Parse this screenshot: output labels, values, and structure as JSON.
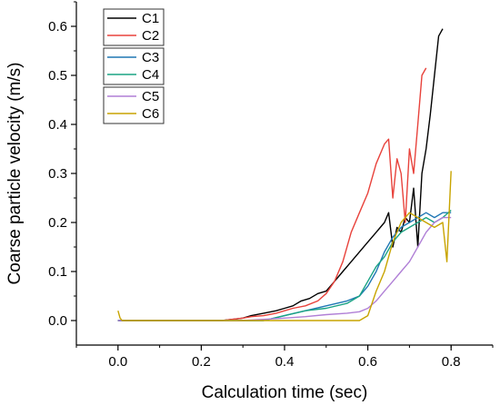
{
  "chart_data": {
    "type": "line",
    "title": "",
    "xlabel": "Calculation time (sec)",
    "ylabel": "Coarse particle velocity (m/s)",
    "xlim": [
      -0.1,
      0.9
    ],
    "ylim": [
      -0.05,
      0.65
    ],
    "xticks": [
      "0.0",
      "0.2",
      "0.4",
      "0.6",
      "0.8"
    ],
    "yticks": [
      "0.0",
      "0.1",
      "0.2",
      "0.3",
      "0.4",
      "0.5",
      "0.6"
    ],
    "grid": false,
    "legend_position": "top-left",
    "legend_groups": [
      [
        0,
        1
      ],
      [
        2,
        3
      ],
      [
        4,
        5
      ]
    ],
    "series": [
      {
        "name": "C1",
        "color": "#000000",
        "x": [
          0.0,
          0.05,
          0.1,
          0.2,
          0.25,
          0.28,
          0.3,
          0.32,
          0.35,
          0.38,
          0.4,
          0.42,
          0.44,
          0.46,
          0.48,
          0.5,
          0.52,
          0.54,
          0.56,
          0.58,
          0.6,
          0.62,
          0.64,
          0.65,
          0.66,
          0.67,
          0.68,
          0.69,
          0.7,
          0.71,
          0.72,
          0.73,
          0.74,
          0.75,
          0.76,
          0.77,
          0.78
        ],
        "y": [
          0.0,
          0.0,
          0.0,
          0.0,
          0.0,
          0.003,
          0.005,
          0.01,
          0.015,
          0.02,
          0.025,
          0.03,
          0.04,
          0.045,
          0.055,
          0.06,
          0.08,
          0.1,
          0.12,
          0.14,
          0.16,
          0.18,
          0.2,
          0.22,
          0.15,
          0.19,
          0.18,
          0.21,
          0.2,
          0.27,
          0.15,
          0.3,
          0.35,
          0.42,
          0.5,
          0.58,
          0.595
        ]
      },
      {
        "name": "C2",
        "color": "#e8423b",
        "x": [
          0.0,
          0.05,
          0.1,
          0.2,
          0.25,
          0.3,
          0.32,
          0.35,
          0.38,
          0.4,
          0.42,
          0.45,
          0.48,
          0.5,
          0.52,
          0.54,
          0.56,
          0.58,
          0.6,
          0.62,
          0.64,
          0.65,
          0.66,
          0.67,
          0.68,
          0.69,
          0.7,
          0.71,
          0.72,
          0.73,
          0.74
        ],
        "y": [
          0.0,
          0.0,
          0.0,
          0.0,
          0.0,
          0.005,
          0.008,
          0.01,
          0.015,
          0.02,
          0.025,
          0.03,
          0.04,
          0.055,
          0.08,
          0.12,
          0.18,
          0.22,
          0.26,
          0.32,
          0.36,
          0.37,
          0.25,
          0.33,
          0.3,
          0.2,
          0.35,
          0.3,
          0.4,
          0.5,
          0.515
        ]
      },
      {
        "name": "C3",
        "color": "#1f77b4",
        "x": [
          0.0,
          0.1,
          0.2,
          0.3,
          0.35,
          0.4,
          0.45,
          0.5,
          0.55,
          0.58,
          0.6,
          0.62,
          0.64,
          0.66,
          0.68,
          0.7,
          0.72,
          0.74,
          0.76,
          0.78,
          0.8
        ],
        "y": [
          0.0,
          0.0,
          0.0,
          0.0,
          0.0,
          0.01,
          0.02,
          0.03,
          0.04,
          0.05,
          0.07,
          0.1,
          0.14,
          0.17,
          0.19,
          0.2,
          0.21,
          0.22,
          0.21,
          0.22,
          0.22
        ]
      },
      {
        "name": "C4",
        "color": "#1aa384",
        "x": [
          0.0,
          0.1,
          0.2,
          0.3,
          0.35,
          0.4,
          0.45,
          0.5,
          0.55,
          0.58,
          0.6,
          0.62,
          0.64,
          0.66,
          0.68,
          0.7,
          0.72,
          0.74,
          0.76,
          0.78,
          0.8
        ],
        "y": [
          0.0,
          0.0,
          0.0,
          0.0,
          0.0,
          0.01,
          0.02,
          0.025,
          0.035,
          0.05,
          0.08,
          0.11,
          0.13,
          0.16,
          0.18,
          0.19,
          0.2,
          0.21,
          0.2,
          0.21,
          0.225
        ]
      },
      {
        "name": "C5",
        "color": "#b07fd6",
        "x": [
          0.0,
          0.1,
          0.2,
          0.3,
          0.4,
          0.45,
          0.5,
          0.55,
          0.58,
          0.6,
          0.62,
          0.64,
          0.66,
          0.68,
          0.7,
          0.72,
          0.74,
          0.76,
          0.78,
          0.8
        ],
        "y": [
          0.0,
          0.0,
          0.0,
          0.0,
          0.005,
          0.008,
          0.012,
          0.015,
          0.018,
          0.025,
          0.04,
          0.06,
          0.08,
          0.1,
          0.12,
          0.15,
          0.18,
          0.2,
          0.21,
          0.21
        ]
      },
      {
        "name": "C6",
        "color": "#c8a400",
        "x": [
          0.0,
          0.005,
          0.01,
          0.05,
          0.1,
          0.2,
          0.3,
          0.4,
          0.5,
          0.55,
          0.58,
          0.6,
          0.62,
          0.64,
          0.66,
          0.68,
          0.7,
          0.72,
          0.74,
          0.76,
          0.78,
          0.79,
          0.8
        ],
        "y": [
          0.02,
          0.005,
          0.0,
          0.0,
          0.0,
          0.0,
          0.0,
          0.0,
          0.0,
          0.0,
          0.0,
          0.01,
          0.06,
          0.1,
          0.16,
          0.2,
          0.22,
          0.21,
          0.2,
          0.19,
          0.2,
          0.12,
          0.305
        ]
      }
    ]
  }
}
